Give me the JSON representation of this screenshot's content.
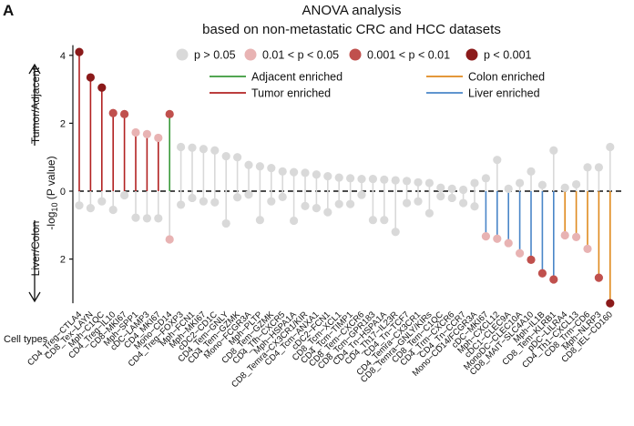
{
  "panel_label": "A",
  "chart_data": {
    "type": "lollipop",
    "title_line1": "ANOVA analysis",
    "title_line2": "based on non-metastatic CRC and HCC datasets",
    "ylabel_top": "Tumor/Adjacent",
    "ylabel_mid": "-log",
    "ylabel_sub": "10",
    "ylabel_tail": " (P value)",
    "ylabel_bottom": "Liver/Colon",
    "y_ticks_top": [
      0,
      2,
      4
    ],
    "y_ticks_bottom": [
      2
    ],
    "y_tick_labels": [
      "0",
      "2",
      "4",
      "2"
    ],
    "ylim_top": [
      0,
      4.3
    ],
    "ylim_bottom": [
      0,
      3.3
    ],
    "xaxis_row_label": "Cell types",
    "pvalue_legend": [
      {
        "label": "p > 0.05",
        "color": "#d9d9d9"
      },
      {
        "label": "0.01 < p < 0.05",
        "color": "#e8b3b3"
      },
      {
        "label": "0.001 < p < 0.01",
        "color": "#c0504d"
      },
      {
        "label": "p < 0.001",
        "color": "#8b1a1a"
      }
    ],
    "line_legend": [
      {
        "label": "Adjacent enriched",
        "color": "#3a9a3a"
      },
      {
        "label": "Tumor enriched",
        "color": "#b22222"
      },
      {
        "label": "Colon enriched",
        "color": "#e08a1e"
      },
      {
        "label": "Liver enriched",
        "color": "#4a86c8"
      }
    ],
    "categories": [
      "CD4_Treg−CTLA4",
      "CD8_Tex−LAYN",
      "Mph−C1QC",
      "CD4_Treg−IL10",
      "CD8−MKI67",
      "Mph−SPP1",
      "cDC−LAMP3",
      "CD4_MKI67",
      "Mono−CD14",
      "CD4_Treg−FOXP3",
      "Mph−FCN1",
      "Mph−MKI67",
      "cDC2−CD1C",
      "CD4_Tem−GNLY",
      "CD4_Tem−GZMK",
      "Mono−FCGR3A",
      "Mph−PLTP",
      "CD8_Tem−GZMK",
      "CD4_Tfh−CXCR5",
      "Mph−HSPA1A",
      "CD8_Temra−CX3CR1/KIR",
      "CD4_Tcm−ANXA1",
      "cDC2−FCN1",
      "CD8_Tcm−XCL1",
      "CD4_Tcm−TIMP1",
      "CD8_Tem−CXCR6",
      "CD8_Tcm−GPR183",
      "CD4_Tn−HSPA1A",
      "CD4_Th17−IL23R",
      "CD4_Tn−TCF7",
      "CD4_Temra−CX3CR1",
      "CD8_Temra−GNLY/KIRs",
      "CD8_Tem−C1QC",
      "CD4_Trm−CXCR6",
      "CD4_Tn−CCR7",
      "Mono−CD14/FCGR3A",
      "cDC−MKI67",
      "Mph−CXCL12",
      "cDC1−CLEC9A",
      "MonoDC−CLEC10A",
      "CD8_MAIT−SLC4A10",
      "Mph−IL1B",
      "CD8_Tem−KLRB1",
      "pDC−LILRA4",
      "CD4_Th1−CXCL13",
      "CD8_Trm−CD6",
      "Mph−NLRP3",
      "CD8_IEL−CD160"
    ],
    "up_values": [
      4.1,
      3.35,
      3.05,
      2.3,
      2.27,
      1.73,
      1.68,
      1.57,
      2.27,
      1.3,
      1.28,
      1.24,
      1.2,
      1.03,
      1.0,
      0.77,
      0.73,
      0.68,
      0.58,
      0.56,
      0.54,
      0.49,
      0.44,
      0.4,
      0.38,
      0.36,
      0.36,
      0.34,
      0.32,
      0.3,
      0.26,
      0.24,
      0.1,
      0.07,
      0.04,
      0.24,
      0.38,
      0.92,
      0.07,
      0.24,
      0.58,
      0.18,
      1.2,
      0.1,
      0.2,
      0.7,
      0.7,
      1.3
    ],
    "up_pclass": [
      3,
      3,
      3,
      2,
      2,
      1,
      1,
      1,
      2,
      0,
      0,
      0,
      0,
      0,
      0,
      0,
      0,
      0,
      0,
      0,
      0,
      0,
      0,
      0,
      0,
      0,
      0,
      0,
      0,
      0,
      0,
      0,
      0,
      0,
      0,
      0,
      0,
      0,
      0,
      0,
      0,
      0,
      0,
      0,
      0,
      0,
      0,
      0
    ],
    "up_enrich": [
      "tumor",
      "tumor",
      "tumor",
      "tumor",
      "tumor",
      "tumor",
      "tumor",
      "tumor",
      "adjacent",
      "none",
      "none",
      "none",
      "none",
      "none",
      "none",
      "none",
      "none",
      "none",
      "none",
      "none",
      "none",
      "none",
      "none",
      "none",
      "none",
      "none",
      "none",
      "none",
      "none",
      "none",
      "none",
      "none",
      "none",
      "none",
      "none",
      "none",
      "none",
      "none",
      "none",
      "none",
      "none",
      "none",
      "none",
      "none",
      "none",
      "none",
      "none",
      "none"
    ],
    "down_values": [
      0.42,
      0.5,
      0.3,
      0.55,
      0.12,
      0.78,
      0.8,
      0.8,
      1.42,
      0.4,
      0.2,
      0.3,
      0.33,
      0.95,
      0.18,
      0.1,
      0.85,
      0.3,
      0.17,
      0.87,
      0.44,
      0.5,
      0.62,
      0.38,
      0.38,
      0.11,
      0.85,
      0.85,
      1.2,
      0.35,
      0.3,
      0.65,
      0.15,
      0.2,
      0.35,
      0.45,
      1.33,
      1.4,
      1.53,
      1.83,
      2.02,
      2.42,
      2.6,
      1.3,
      1.35,
      1.7,
      2.55,
      3.3
    ],
    "down_pclass": [
      0,
      0,
      0,
      0,
      0,
      0,
      0,
      0,
      1,
      0,
      0,
      0,
      0,
      0,
      0,
      0,
      0,
      0,
      0,
      0,
      0,
      0,
      0,
      0,
      0,
      0,
      0,
      0,
      0,
      0,
      0,
      0,
      0,
      0,
      0,
      0,
      1,
      1,
      1,
      1,
      2,
      2,
      2,
      1,
      1,
      1,
      2,
      3
    ],
    "down_enrich": [
      "none",
      "none",
      "none",
      "none",
      "none",
      "none",
      "none",
      "none",
      "none",
      "none",
      "none",
      "none",
      "none",
      "none",
      "none",
      "none",
      "none",
      "none",
      "none",
      "none",
      "none",
      "none",
      "none",
      "none",
      "none",
      "none",
      "none",
      "none",
      "none",
      "none",
      "none",
      "none",
      "none",
      "none",
      "none",
      "none",
      "liver",
      "liver",
      "liver",
      "liver",
      "liver",
      "liver",
      "liver",
      "colon",
      "colon",
      "colon",
      "colon",
      "colon"
    ]
  }
}
